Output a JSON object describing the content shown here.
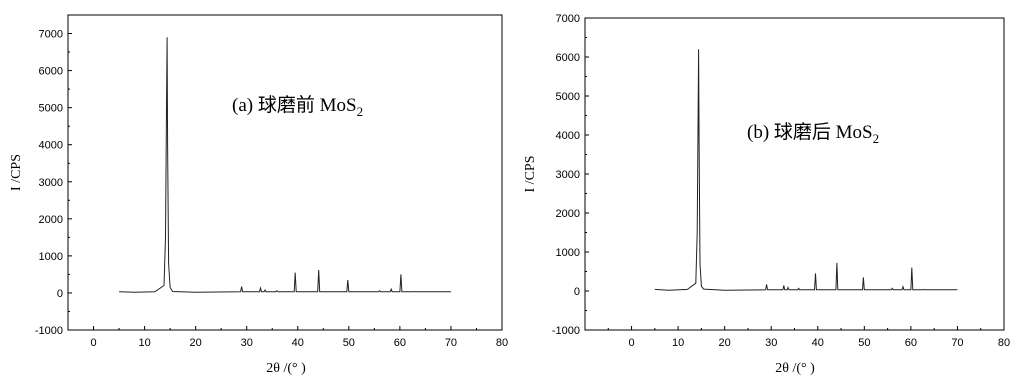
{
  "chart_data": [
    {
      "type": "line",
      "annotation": "(a) 球磨前 MoS",
      "annotation_sub": "2",
      "xlabel": "2θ /(° )",
      "ylabel": "I /CPS",
      "xlim": [
        -5,
        80
      ],
      "ylim": [
        -1000,
        7500
      ],
      "xticks": [
        "0",
        "10",
        "20",
        "30",
        "40",
        "50",
        "60",
        "70",
        "80"
      ],
      "yticks": [
        "-1000",
        "0",
        "1000",
        "2000",
        "3000",
        "4000",
        "5000",
        "6000",
        "7000"
      ],
      "series": [
        {
          "x": [
            5,
            8,
            12,
            13.8,
            14.1,
            14.3,
            14.4,
            14.5,
            14.7,
            15.0,
            15.5,
            20,
            28.8,
            29.0,
            29.2,
            32.5,
            32.7,
            32.9,
            33.4,
            33.6,
            33.8,
            35.7,
            35.9,
            36.1,
            39.3,
            39.5,
            39.7,
            43.9,
            44.1,
            44.3,
            49.6,
            49.8,
            50.0,
            55.8,
            56.0,
            56.2,
            58.1,
            58.3,
            58.5,
            60.0,
            60.2,
            60.4,
            62.6,
            62.8,
            63.0,
            70
          ],
          "y": [
            30,
            20,
            30,
            200,
            1500,
            5000,
            6900,
            4000,
            800,
            150,
            40,
            20,
            30,
            170,
            30,
            30,
            130,
            30,
            30,
            80,
            30,
            30,
            60,
            30,
            30,
            550,
            30,
            30,
            620,
            30,
            30,
            350,
            30,
            30,
            60,
            30,
            30,
            100,
            30,
            30,
            500,
            30,
            30,
            40,
            30,
            30
          ]
        }
      ]
    },
    {
      "type": "line",
      "annotation": "(b) 球磨后 MoS",
      "annotation_sub": "2",
      "xlabel": "2θ /(° )",
      "ylabel": "I /CPS",
      "xlim": [
        -10,
        80
      ],
      "ylim": [
        -1000,
        7000
      ],
      "xticks": [
        "0",
        "10",
        "20",
        "30",
        "40",
        "50",
        "60",
        "70",
        "80"
      ],
      "yticks": [
        "-1000",
        "0",
        "1000",
        "2000",
        "3000",
        "4000",
        "5000",
        "6000",
        "7000"
      ],
      "series": [
        {
          "x": [
            5,
            8,
            12,
            13.8,
            14.1,
            14.3,
            14.4,
            14.5,
            14.7,
            15.0,
            15.5,
            20,
            28.8,
            29.0,
            29.2,
            32.5,
            32.7,
            32.9,
            33.4,
            33.6,
            33.8,
            35.7,
            35.9,
            36.1,
            39.3,
            39.5,
            39.7,
            43.9,
            44.1,
            44.3,
            49.6,
            49.8,
            50.0,
            55.8,
            56.0,
            56.2,
            58.1,
            58.3,
            58.5,
            60.0,
            60.2,
            60.4,
            62.6,
            62.8,
            63.0,
            70
          ],
          "y": [
            40,
            20,
            40,
            200,
            1500,
            4500,
            6200,
            3800,
            700,
            120,
            50,
            20,
            30,
            170,
            30,
            30,
            140,
            30,
            30,
            90,
            30,
            30,
            70,
            30,
            30,
            450,
            30,
            30,
            720,
            30,
            30,
            350,
            30,
            30,
            70,
            30,
            30,
            110,
            30,
            30,
            600,
            30,
            30,
            40,
            30,
            30
          ]
        }
      ]
    }
  ]
}
